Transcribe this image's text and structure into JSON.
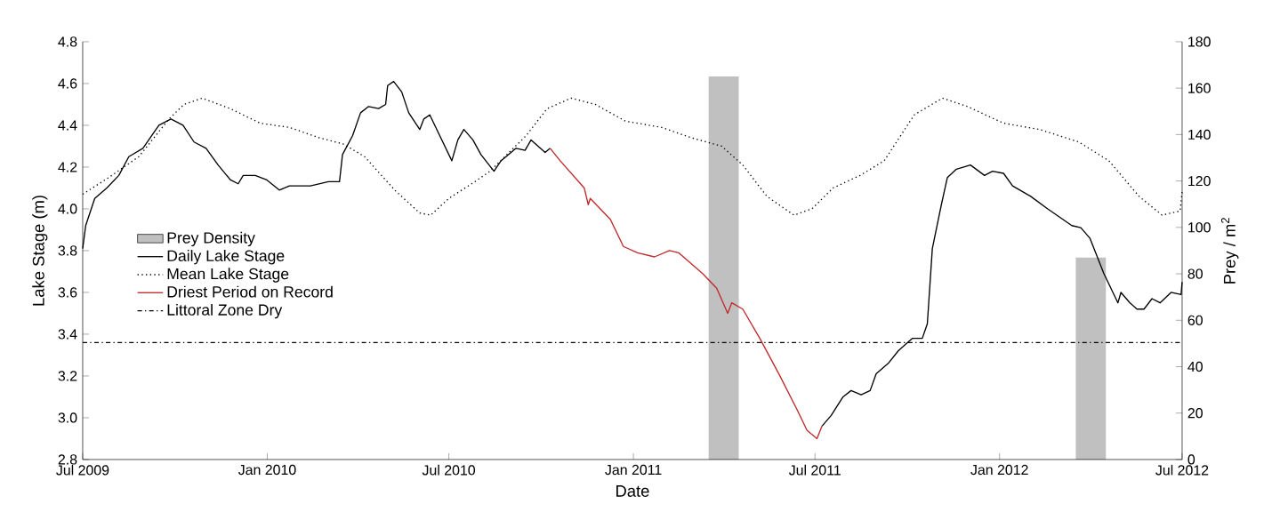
{
  "chart_data": {
    "type": "line",
    "xlabel": "Date",
    "ylabel": "Lake Stage (m)",
    "y2label": "Prey / m$^{2}$",
    "xlim": [
      "2009-07-01",
      "2012-07-01"
    ],
    "xticks": [
      {
        "value": "2009-07-01",
        "label": "Jul 2009"
      },
      {
        "value": "2010-01-01",
        "label": "Jan 2010"
      },
      {
        "value": "2010-07-01",
        "label": "Jul 2010"
      },
      {
        "value": "2011-01-01",
        "label": "Jan 2011"
      },
      {
        "value": "2011-07-01",
        "label": "Jul 2011"
      },
      {
        "value": "2012-01-01",
        "label": "Jan 2012"
      },
      {
        "value": "2012-07-01",
        "label": "Jul 2012"
      }
    ],
    "ylim": [
      2.8,
      4.8
    ],
    "yticks": [
      2.8,
      {
        "value": 3,
        "label": "3.0"
      },
      3.2,
      3.4,
      3.6,
      3.8,
      {
        "value": 4,
        "label": "4.0"
      },
      4.2,
      4.4,
      4.6,
      4.8
    ],
    "y2lim": [
      0,
      180
    ],
    "y2ticks": [
      0,
      20,
      40,
      60,
      80,
      100,
      120,
      140,
      160,
      180
    ],
    "legend": "left",
    "series": [
      {
        "name": "Prey Density",
        "type": "bar",
        "axis": "y2",
        "color": "#c0c0c0",
        "x": [
          "2011-04-01",
          "2012-04-01"
        ],
        "values": [
          165,
          87
        ]
      },
      {
        "name": "Daily Lake Stage",
        "color": "#000000",
        "line_style": "solid",
        "x": [
          "2009-07-01",
          "2009-07-04",
          "2009-07-13",
          "2009-07-25",
          "2009-08-06",
          "2009-08-16",
          "2009-08-30",
          "2009-09-15",
          "2009-09-27",
          "2009-10-09",
          "2009-10-20",
          "2009-11-01",
          "2009-11-13",
          "2009-11-25",
          "2009-12-03",
          "2009-12-08",
          "2009-12-20",
          "2009-12-31",
          "2010-01-13",
          "2010-01-23",
          "2010-02-13",
          "2010-03-03",
          "2010-03-14",
          "2010-03-17",
          "2010-03-27",
          "2010-04-04",
          "2010-04-12",
          "2010-04-22",
          "2010-04-29",
          "2010-05-01",
          "2010-05-07",
          "2010-05-15",
          "2010-05-22",
          "2010-06-02",
          "2010-06-06",
          "2010-06-12",
          "2010-06-22",
          "2010-07-04",
          "2010-07-10",
          "2010-07-16",
          "2010-07-25",
          "2010-08-02",
          "2010-08-15",
          "2010-08-22",
          "2010-09-06",
          "2010-09-15",
          "2010-09-21",
          "2010-10-05",
          "2010-10-10",
          "2011-01-01",
          "2011-07-08",
          "2011-07-17",
          "2011-07-29",
          "2011-08-06",
          "2011-08-16",
          "2011-08-25",
          "2011-08-31",
          "2011-09-12",
          "2011-09-22",
          "2011-10-06",
          "2011-10-16",
          "2011-10-21",
          "2011-10-26",
          "2011-11-04",
          "2011-11-10",
          "2011-11-19",
          "2011-12-03",
          "2011-12-17",
          "2011-12-25",
          "2012-01-05",
          "2012-01-14",
          "2012-02-01",
          "2012-02-18",
          "2012-03-13",
          "2012-03-22",
          "2012-03-31",
          "2012-04-14",
          "2012-04-28",
          "2012-05-01",
          "2012-05-10",
          "2012-05-17",
          "2012-05-24",
          "2012-06-01",
          "2012-06-09",
          "2012-06-20",
          "2012-06-30",
          "2012-07-01"
        ],
        "values": [
          3.81,
          3.92,
          4.05,
          4.1,
          4.16,
          4.25,
          4.29,
          4.4,
          4.43,
          4.4,
          4.32,
          4.29,
          4.21,
          4.14,
          4.12,
          4.16,
          4.16,
          4.14,
          4.09,
          4.11,
          4.11,
          4.13,
          4.13,
          4.26,
          4.35,
          4.46,
          4.49,
          4.48,
          4.5,
          4.59,
          4.61,
          4.56,
          4.46,
          4.38,
          4.43,
          4.45,
          4.35,
          4.23,
          4.33,
          4.38,
          4.33,
          4.26,
          4.18,
          4.23,
          4.29,
          4.28,
          4.33,
          4.27,
          4.29,
          null,
          2.96,
          3.01,
          3.1,
          3.13,
          3.11,
          3.13,
          3.21,
          3.26,
          3.32,
          3.38,
          3.38,
          3.45,
          3.81,
          4.02,
          4.15,
          4.19,
          4.21,
          4.16,
          4.18,
          4.17,
          4.11,
          4.06,
          4.0,
          3.92,
          3.91,
          3.86,
          3.69,
          3.55,
          3.6,
          3.55,
          3.52,
          3.52,
          3.57,
          3.55,
          3.6,
          3.59,
          3.65
        ]
      },
      {
        "name": "Mean Lake Stage",
        "color": "#000000",
        "line_style": "dotted",
        "x": [
          "2009-07-01",
          "2009-07-27",
          "2009-08-26",
          "2009-09-25",
          "2009-10-10",
          "2009-10-28",
          "2009-11-25",
          "2009-12-25",
          "2010-01-23",
          "2010-02-22",
          "2010-03-18",
          "2010-04-08",
          "2010-05-08",
          "2010-06-02",
          "2010-06-13",
          "2010-07-01",
          "2010-07-27",
          "2010-08-11",
          "2010-09-16",
          "2010-10-07",
          "2010-10-31",
          "2010-11-24",
          "2010-12-24",
          "2011-01-29",
          "2011-02-28",
          "2011-03-30",
          "2011-04-20",
          "2011-05-14",
          "2011-06-10",
          "2011-06-28",
          "2011-07-19",
          "2011-08-15",
          "2011-09-08",
          "2011-10-08",
          "2011-11-05",
          "2011-11-30",
          "2012-01-05",
          "2012-02-10",
          "2012-03-20",
          "2012-04-19",
          "2012-05-19",
          "2012-06-11",
          "2012-06-29",
          "2012-07-01"
        ],
        "values": [
          4.07,
          4.15,
          4.25,
          4.43,
          4.5,
          4.53,
          4.48,
          4.41,
          4.39,
          4.34,
          4.31,
          4.25,
          4.09,
          3.98,
          3.97,
          4.05,
          4.13,
          4.18,
          4.35,
          4.48,
          4.53,
          4.5,
          4.42,
          4.39,
          4.34,
          4.3,
          4.21,
          4.06,
          3.97,
          4.0,
          4.1,
          4.16,
          4.23,
          4.45,
          4.53,
          4.49,
          4.41,
          4.38,
          4.32,
          4.23,
          4.06,
          3.97,
          3.99,
          4.08
        ]
      },
      {
        "name": "Driest Period on Record",
        "color": "#c0282a",
        "line_style": "solid",
        "x": [
          "2010-10-10",
          "2010-10-20",
          "2010-11-13",
          "2010-11-17",
          "2010-11-19",
          "2010-12-09",
          "2010-12-22",
          "2011-01-05",
          "2011-01-22",
          "2011-02-06",
          "2011-02-15",
          "2011-03-11",
          "2011-03-25",
          "2011-04-05",
          "2011-04-09",
          "2011-04-20",
          "2011-05-07",
          "2011-05-26",
          "2011-06-13",
          "2011-06-23",
          "2011-07-03",
          "2011-07-08"
        ],
        "values": [
          4.29,
          4.23,
          4.1,
          4.02,
          4.05,
          3.95,
          3.82,
          3.79,
          3.77,
          3.8,
          3.79,
          3.69,
          3.62,
          3.5,
          3.55,
          3.52,
          3.38,
          3.21,
          3.04,
          2.94,
          2.9,
          2.96
        ]
      }
    ],
    "ref_lines": [
      {
        "axis": "y",
        "value": 3.36,
        "label": "Littoral Zone Dry",
        "color": "#000000",
        "line_style": "dashdot"
      }
    ]
  }
}
